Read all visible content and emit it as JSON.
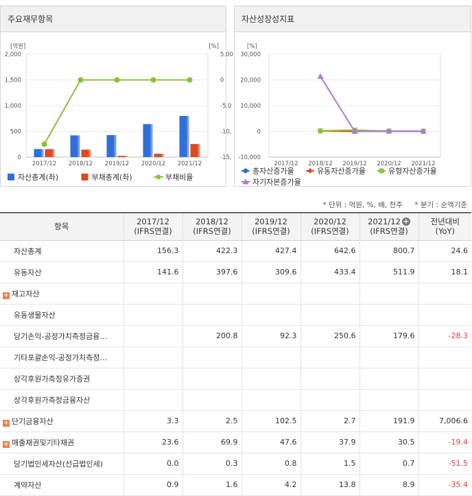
{
  "left_panel": {
    "title": "주요재무항목",
    "chart_data": {
      "type": "bar",
      "categories": [
        "2017/12",
        "2018/12",
        "2019/12",
        "2020/12",
        "2021/12"
      ],
      "left_unit": "[억원]",
      "right_unit": "[%]",
      "left_ticks": [
        "2,000",
        "1,500",
        "1,000",
        "500",
        "0"
      ],
      "right_ticks": [
        "5.00",
        "0",
        "-5.0",
        "-10,",
        "-15,"
      ],
      "ylim": [
        0,
        2000
      ],
      "y2lim": [
        -15,
        5
      ],
      "series": [
        {
          "name": "자산총계(좌)",
          "type": "bar",
          "color": "#2f6fd8",
          "values": [
            156.3,
            422.3,
            427.4,
            642.6,
            800.7
          ]
        },
        {
          "name": "부채총계(좌)",
          "type": "bar",
          "color": "#dd4a1f",
          "values": [
            155,
            145,
            25,
            65,
            255
          ]
        },
        {
          "name": "부채비율",
          "type": "line",
          "color": "#88c23b",
          "values": [
            -12.5,
            0,
            0,
            0,
            0
          ]
        }
      ]
    }
  },
  "right_panel": {
    "title": "자산성장성지표",
    "chart_data": {
      "type": "line",
      "categories": [
        "2017/12",
        "2018/12",
        "2019/12",
        "2020/12",
        "2021/12"
      ],
      "unit": "[%]",
      "ticks": [
        "30,000",
        "20,000",
        "10,000",
        "0",
        "-10,000"
      ],
      "ylim": [
        -10000,
        30000
      ],
      "series": [
        {
          "name": "총자산증가율",
          "color": "#2f6fd8",
          "marker": "circle",
          "values": [
            null,
            170,
            1.2,
            50.3,
            24.6
          ]
        },
        {
          "name": "유동자산증가율",
          "color": "#dd4a1f",
          "marker": "diamond",
          "values": [
            null,
            180,
            -22.2,
            40.1,
            18.1
          ]
        },
        {
          "name": "유형자산증가율",
          "color": "#88c23b",
          "marker": "square",
          "values": [
            null,
            200,
            500,
            150,
            100
          ]
        },
        {
          "name": "자기자본증가율",
          "color": "#a97bd6",
          "marker": "triangle",
          "values": [
            null,
            21400,
            0,
            100,
            30
          ]
        }
      ]
    }
  },
  "unit_note": {
    "unit": "* 단위 : 억원, %, 배, 천주",
    "period": "* 분기 : 순액기준"
  },
  "table": {
    "header": {
      "item": "항목",
      "periods": [
        {
          "year": "2017/12",
          "basis": "(IFRS연결)"
        },
        {
          "year": "2018/12",
          "basis": "(IFRS연결)"
        },
        {
          "year": "2019/12",
          "basis": "(IFRS연결)"
        },
        {
          "year": "2020/12",
          "basis": "(IFRS연결)"
        },
        {
          "year": "2021/12",
          "basis": "(IFRS연결)"
        }
      ],
      "yoy_line1": "전년대비",
      "yoy_line2": "(YoY)"
    },
    "rows": [
      {
        "label": "자산총계",
        "expand": false,
        "values": [
          "156.3",
          "422.3",
          "427.4",
          "642.6",
          "800.7"
        ],
        "yoy": "24.6",
        "yoy_neg": false
      },
      {
        "label": "유동자산",
        "expand": false,
        "values": [
          "141.6",
          "397.6",
          "309.6",
          "433.4",
          "511.9"
        ],
        "yoy": "18.1",
        "yoy_neg": false
      },
      {
        "label": "재고자산",
        "expand": true,
        "values": [
          "",
          "",
          "",
          "",
          ""
        ],
        "yoy": "",
        "yoy_neg": false
      },
      {
        "label": "유동생물자산",
        "expand": false,
        "values": [
          "",
          "",
          "",
          "",
          ""
        ],
        "yoy": "",
        "yoy_neg": false
      },
      {
        "label": "당기손익-공정가치측정금융…",
        "expand": false,
        "values": [
          "",
          "200.8",
          "92.3",
          "250.6",
          "179.6"
        ],
        "yoy": "-28.3",
        "yoy_neg": true
      },
      {
        "label": "기타포괄손익-공정가치측정…",
        "expand": false,
        "values": [
          "",
          "",
          "",
          "",
          ""
        ],
        "yoy": "",
        "yoy_neg": false
      },
      {
        "label": "상각후원가측정유가증권",
        "expand": false,
        "values": [
          "",
          "",
          "",
          "",
          ""
        ],
        "yoy": "",
        "yoy_neg": false
      },
      {
        "label": "상각후원가측정금융자산",
        "expand": false,
        "values": [
          "",
          "",
          "",
          "",
          ""
        ],
        "yoy": "",
        "yoy_neg": false
      },
      {
        "label": "단기금융자산",
        "expand": true,
        "values": [
          "3.3",
          "2.5",
          "102.5",
          "2.7",
          "191.9"
        ],
        "yoy": "7,006.6",
        "yoy_neg": false
      },
      {
        "label": "매출채권및기타채권",
        "expand": true,
        "values": [
          "23.6",
          "69.9",
          "47.6",
          "37.9",
          "30.5"
        ],
        "yoy": "-19.4",
        "yoy_neg": true
      },
      {
        "label": "당기법인세자산(선급법인세)",
        "expand": false,
        "values": [
          "0.0",
          "0.3",
          "0.8",
          "1.5",
          "0.7"
        ],
        "yoy": "-51.5",
        "yoy_neg": true
      },
      {
        "label": "계약자산",
        "expand": false,
        "values": [
          "0.9",
          "1.6",
          "4.2",
          "13.8",
          "8.9"
        ],
        "yoy": "-35.4",
        "yoy_neg": true
      }
    ]
  }
}
